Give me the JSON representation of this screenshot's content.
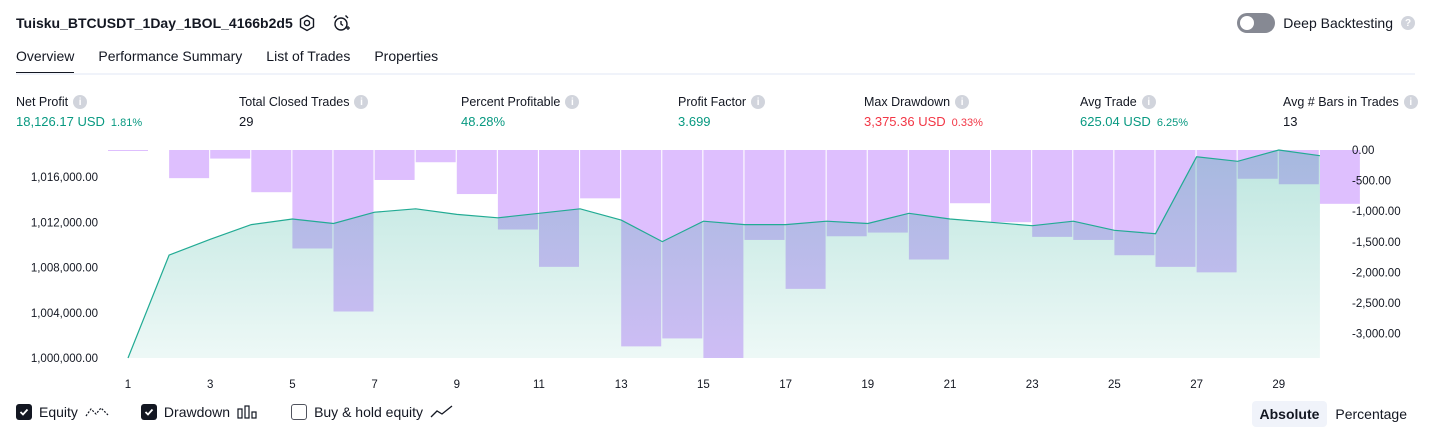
{
  "header": {
    "title": "Tuisku_BTCUSDT_1Day_1BOL_4166b2d5",
    "deep_backtesting_label": "Deep Backtesting"
  },
  "tabs": [
    {
      "label": "Overview",
      "active": true
    },
    {
      "label": "Performance Summary",
      "active": false
    },
    {
      "label": "List of Trades",
      "active": false
    },
    {
      "label": "Properties",
      "active": false
    }
  ],
  "stats": {
    "net_profit": {
      "label": "Net Profit",
      "value": "18,126.17 USD",
      "pct": "1.81%"
    },
    "total_closed_trades": {
      "label": "Total Closed Trades",
      "value": "29"
    },
    "percent_profitable": {
      "label": "Percent Profitable",
      "value": "48.28%"
    },
    "profit_factor": {
      "label": "Profit Factor",
      "value": "3.699"
    },
    "max_drawdown": {
      "label": "Max Drawdown",
      "value": "3,375.36 USD",
      "pct": "0.33%"
    },
    "avg_trade": {
      "label": "Avg Trade",
      "value": "625.04 USD",
      "pct": "6.25%"
    },
    "avg_bars": {
      "label": "Avg # Bars in Trades",
      "value": "13"
    }
  },
  "legend": {
    "equity": {
      "label": "Equity",
      "checked": true
    },
    "drawdown": {
      "label": "Drawdown",
      "checked": true
    },
    "buy_hold": {
      "label": "Buy & hold equity",
      "checked": false
    }
  },
  "scale_toggle": {
    "absolute": "Absolute",
    "percentage": "Percentage",
    "selected": "Absolute"
  },
  "colors": {
    "equity_line": "#22ab94",
    "drawdown_bar": "#d8b4fe",
    "positive": "#089981",
    "negative": "#f23645"
  },
  "chart_data": {
    "type": "area",
    "x_ticks": [
      "1",
      "3",
      "5",
      "7",
      "9",
      "11",
      "13",
      "15",
      "17",
      "19",
      "21",
      "23",
      "25",
      "27",
      "29"
    ],
    "left_ticks": [
      "1,016,000.00",
      "1,012,000.00",
      "1,008,000.00",
      "1,004,000.00",
      "1,000,000.00"
    ],
    "right_ticks": [
      "0.00",
      "-500.00",
      "-1,000.00",
      "-1,500.00",
      "-2,000.00",
      "-2,500.00",
      "-3,000.00"
    ],
    "x": [
      1,
      2,
      3,
      4,
      5,
      6,
      7,
      8,
      9,
      10,
      11,
      12,
      13,
      14,
      15,
      16,
      17,
      18,
      19,
      20,
      21,
      22,
      23,
      24,
      25,
      26,
      27,
      28,
      29,
      30
    ],
    "equity_axis": {
      "label": "Equity",
      "ylim": [
        1000000,
        1018400
      ]
    },
    "drawdown_axis": {
      "label": "Drawdown",
      "ylim": [
        -3400,
        0
      ]
    },
    "series": [
      {
        "name": "Equity",
        "values": [
          1000000,
          1009100,
          1010500,
          1011800,
          1012300,
          1011900,
          1012900,
          1013200,
          1012700,
          1012400,
          1012800,
          1013200,
          1012200,
          1010300,
          1012100,
          1011800,
          1011800,
          1012100,
          1011900,
          1012800,
          1012300,
          1012000,
          1011700,
          1012100,
          1011300,
          1011000,
          1017800,
          1017400,
          1018400,
          1017900
        ]
      },
      {
        "name": "Drawdown",
        "values": [
          -10,
          -460,
          -140,
          -690,
          -1610,
          -2640,
          -490,
          -200,
          -720,
          -1300,
          -1910,
          -790,
          -3210,
          -3080,
          -3400,
          -1470,
          -2270,
          -1410,
          -1350,
          -1790,
          -870,
          -1180,
          -1420,
          -1470,
          -1720,
          -1910,
          -2000,
          -470,
          -560,
          -880
        ]
      }
    ]
  }
}
